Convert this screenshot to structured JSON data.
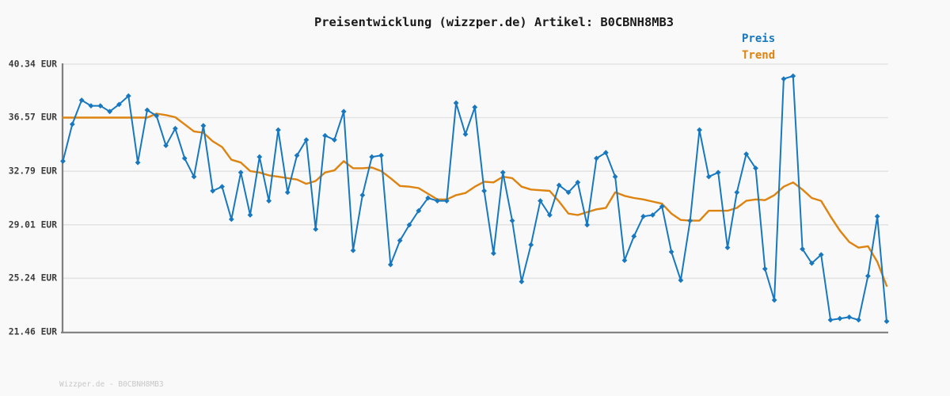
{
  "title": "Preisentwicklung (wizzper.de) Artikel: B0CBNH8MB3",
  "footer": "Wizzper.de - B0CBNH8MB3",
  "colors": {
    "price": "#1878bf",
    "trend": "#de830f",
    "grid": "#e4e4e4",
    "axis": "#7f7f7f",
    "background": "#f9f9f9"
  },
  "legend": {
    "items": [
      {
        "label": "Preis",
        "color": "#1878bf"
      },
      {
        "label": "Trend",
        "color": "#de830f"
      }
    ]
  },
  "y_axis": {
    "unit": "EUR",
    "ticks": [
      {
        "label": "40.34 EUR",
        "value": 40.34
      },
      {
        "label": "36.57 EUR",
        "value": 36.57
      },
      {
        "label": "32.79 EUR",
        "value": 32.79
      },
      {
        "label": "29.01 EUR",
        "value": 29.01
      },
      {
        "label": "25.24 EUR",
        "value": 25.24
      },
      {
        "label": "21.46 EUR",
        "value": 21.46
      }
    ]
  },
  "chart_data": {
    "type": "line",
    "title": "Preisentwicklung (wizzper.de) Artikel: B0CBNH8MB3",
    "xlabel": "",
    "ylabel": "EUR",
    "ylim": [
      21.46,
      40.34
    ],
    "y_ticks": [
      40.34,
      36.57,
      32.79,
      29.01,
      25.24,
      21.46
    ],
    "x_tick_labels": "none",
    "grid": "horizontal",
    "legend_position": "top-right",
    "series": [
      {
        "name": "Preis",
        "color": "#1878bf",
        "marker": "diamond",
        "values": [
          33.5,
          36.1,
          37.8,
          37.4,
          37.4,
          37.0,
          37.5,
          38.1,
          33.4,
          37.1,
          36.7,
          34.6,
          35.8,
          33.7,
          32.4,
          36.0,
          31.4,
          31.7,
          29.4,
          32.7,
          29.7,
          33.8,
          30.7,
          35.7,
          31.3,
          33.9,
          35.0,
          28.7,
          35.3,
          35.0,
          37.0,
          27.2,
          31.1,
          33.8,
          33.9,
          26.2,
          27.9,
          29.0,
          30.0,
          30.9,
          30.7,
          30.7,
          37.6,
          35.4,
          37.3,
          31.4,
          27.0,
          32.7,
          29.3,
          25.0,
          27.6,
          30.7,
          29.7,
          31.8,
          31.3,
          32.0,
          29.0,
          33.7,
          34.1,
          32.4,
          26.5,
          28.2,
          29.6,
          29.7,
          30.3,
          27.1,
          25.1,
          29.3,
          35.7,
          32.4,
          32.7,
          27.4,
          31.3,
          34.0,
          33.0,
          25.9,
          23.7,
          39.3,
          39.5,
          27.3,
          26.3,
          26.9,
          22.3,
          22.4,
          22.5,
          22.3,
          25.4,
          29.6,
          22.2
        ]
      },
      {
        "name": "Trend",
        "color": "#de830f",
        "marker": "none",
        "values": [
          36.57,
          36.57,
          36.57,
          36.57,
          36.57,
          36.57,
          36.57,
          36.57,
          36.57,
          36.57,
          36.85,
          36.75,
          36.6,
          36.1,
          35.6,
          35.5,
          34.9,
          34.5,
          33.6,
          33.4,
          32.8,
          32.7,
          32.5,
          32.4,
          32.3,
          32.2,
          31.9,
          32.1,
          32.7,
          32.85,
          33.5,
          33.0,
          33.0,
          33.05,
          32.8,
          32.3,
          31.75,
          31.7,
          31.6,
          31.2,
          30.8,
          30.8,
          31.1,
          31.25,
          31.7,
          32.05,
          32.0,
          32.4,
          32.3,
          31.7,
          31.5,
          31.45,
          31.4,
          30.65,
          29.8,
          29.7,
          29.9,
          30.1,
          30.2,
          31.3,
          31.05,
          30.9,
          30.8,
          30.65,
          30.5,
          29.8,
          29.35,
          29.3,
          29.3,
          30.0,
          30.0,
          30.0,
          30.2,
          30.7,
          30.8,
          30.75,
          31.1,
          31.7,
          32.0,
          31.5,
          30.9,
          30.7,
          29.6,
          28.6,
          27.8,
          27.4,
          27.5,
          26.4,
          24.7
        ]
      }
    ]
  }
}
